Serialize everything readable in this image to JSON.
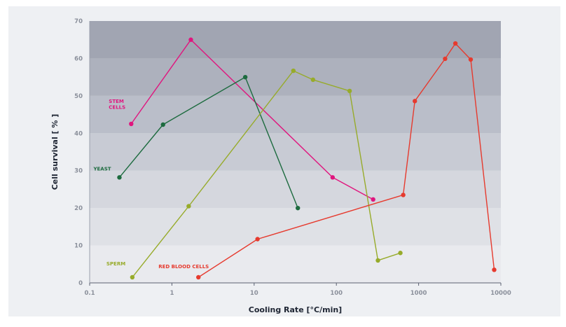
{
  "chart_data": {
    "type": "line",
    "title": "",
    "xlabel": "Cooling Rate [°C/min]",
    "ylabel": "Cell survival [ % ]",
    "x_scale": "log",
    "xlim": [
      0.1,
      10000
    ],
    "ylim": [
      0,
      70
    ],
    "x_ticks": [
      "0.1",
      "1",
      "10",
      "100",
      "1000",
      "10000"
    ],
    "y_ticks": [
      "0",
      "10",
      "20",
      "30",
      "40",
      "50",
      "60",
      "70"
    ],
    "grid": "horizontal shaded bands",
    "band_colors": [
      "#e9eaee",
      "#dfe1e6",
      "#d5d7de",
      "#c8cbd4",
      "#babec9",
      "#adb1bd",
      "#a1a5b2"
    ],
    "series": [
      {
        "name": "STEM CELLS",
        "label_lines": [
          "STEM",
          "CELLS"
        ],
        "color": "#e0157e",
        "points": [
          [
            0.32,
            42.5
          ],
          [
            1.7,
            65
          ],
          [
            90,
            28.2
          ],
          [
            280,
            22.3
          ]
        ]
      },
      {
        "name": "YEAST",
        "label_lines": [
          "YEAST"
        ],
        "color": "#1d6b3f",
        "points": [
          [
            0.23,
            28.2
          ],
          [
            0.78,
            42.3
          ],
          [
            7.8,
            55
          ],
          [
            34,
            20
          ]
        ]
      },
      {
        "name": "SPERM",
        "label_lines": [
          "SPERM"
        ],
        "color": "#97ab2a",
        "points": [
          [
            0.33,
            1.5
          ],
          [
            1.6,
            20.5
          ],
          [
            30,
            56.7
          ],
          [
            52,
            54.3
          ],
          [
            145,
            51.3
          ],
          [
            320,
            6
          ],
          [
            600,
            8
          ]
        ]
      },
      {
        "name": "RED BLOOD CELLS",
        "label_lines": [
          "RED BLOOD CELLS"
        ],
        "color": "#e63a2e",
        "points": [
          [
            2.1,
            1.5
          ],
          [
            11,
            11.7
          ],
          [
            650,
            23.5
          ],
          [
            900,
            48.6
          ],
          [
            2100,
            59.9
          ],
          [
            2800,
            64
          ],
          [
            4300,
            59.7
          ],
          [
            8300,
            3.5
          ]
        ]
      }
    ]
  }
}
